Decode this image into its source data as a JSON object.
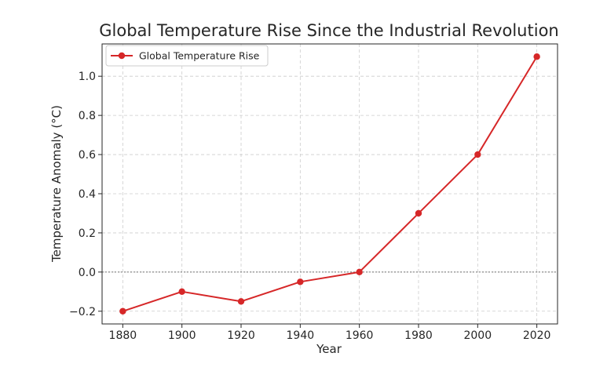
{
  "chart_data": {
    "type": "line",
    "title": "Global Temperature Rise Since the Industrial Revolution",
    "xlabel": "Year",
    "ylabel": "Temperature Anomaly (°C)",
    "x": [
      1880,
      1900,
      1920,
      1940,
      1960,
      1980,
      2000,
      2020
    ],
    "series": [
      {
        "name": "Global Temperature Rise",
        "values": [
          -0.2,
          -0.1,
          -0.15,
          -0.05,
          0.0,
          0.3,
          0.6,
          1.1
        ],
        "color": "#d62728"
      }
    ],
    "xticks": [
      1880,
      1900,
      1920,
      1940,
      1960,
      1980,
      2000,
      2020
    ],
    "xtick_labels": [
      "1880",
      "1900",
      "1920",
      "1940",
      "1960",
      "1980",
      "2000",
      "2020"
    ],
    "yticks": [
      -0.2,
      0.0,
      0.2,
      0.4,
      0.6,
      0.8,
      1.0
    ],
    "ytick_labels": [
      "−0.2",
      "0.0",
      "0.2",
      "0.4",
      "0.6",
      "0.8",
      "1.0"
    ],
    "xlim": [
      1873,
      2027
    ],
    "ylim": [
      -0.265,
      1.165
    ],
    "grid": true,
    "zero_reference_line": true,
    "legend_position": "top-left"
  }
}
